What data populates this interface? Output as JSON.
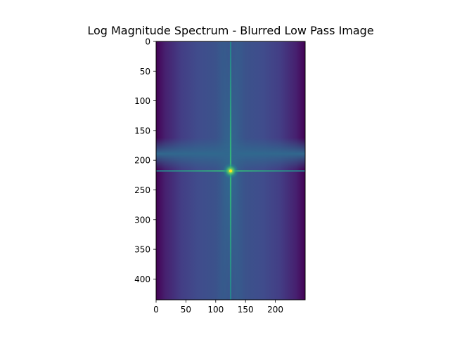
{
  "chart_data": {
    "type": "heatmap",
    "title": "Log Magnitude Spectrum - Blurred Low Pass Image",
    "xlabel": "",
    "ylabel": "",
    "image_width": 250,
    "image_height": 435,
    "xlim": [
      0,
      250
    ],
    "ylim": [
      435,
      0
    ],
    "x_ticks": [
      0,
      50,
      100,
      150,
      200
    ],
    "y_ticks": [
      0,
      50,
      100,
      150,
      200,
      250,
      300,
      350,
      400
    ],
    "peak": {
      "x": 125,
      "y": 218
    },
    "colormap": [
      "#440154",
      "#3b528b",
      "#21918c",
      "#5ec962",
      "#fde725"
    ],
    "grid": false,
    "legend": false
  }
}
